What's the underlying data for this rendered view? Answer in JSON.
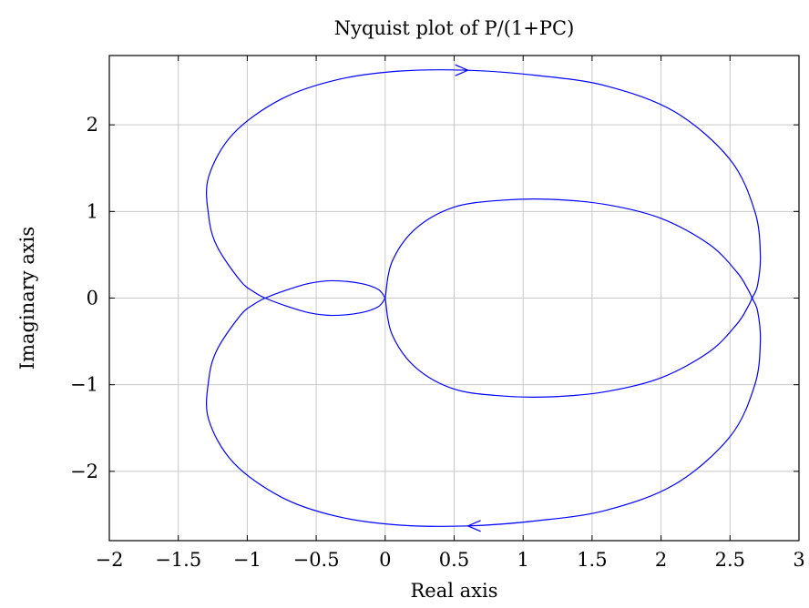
{
  "chart_data": {
    "type": "line",
    "title": "Nyquist plot of P/(1+PC)",
    "xlabel": "Real axis",
    "ylabel": "Imaginary axis",
    "xlim": [
      -2,
      3
    ],
    "ylim": [
      -2.8,
      2.8
    ],
    "grid": true,
    "xticks": [
      -2,
      -1.5,
      -1,
      -0.5,
      0,
      0.5,
      1,
      1.5,
      2,
      2.5,
      3
    ],
    "yticks": [
      -2,
      -1,
      0,
      1,
      2
    ],
    "xtick_labels": [
      "−2",
      "−1.5",
      "−1",
      "−0.5",
      "0",
      "0.5",
      "1",
      "1.5",
      "2",
      "2.5",
      "3"
    ],
    "ytick_labels": [
      "−2",
      "−1",
      "0",
      "1",
      "2"
    ],
    "series": [
      {
        "color": "#0000ff",
        "segments": [
          [
            [
              0,
              0
            ],
            [
              0.05,
              0.42
            ],
            [
              0.22,
              0.8
            ],
            [
              0.5,
              1.05
            ],
            [
              0.85,
              1.13
            ],
            [
              1.2,
              1.14
            ],
            [
              1.6,
              1.08
            ],
            [
              2.0,
              0.92
            ],
            [
              2.35,
              0.62
            ],
            [
              2.55,
              0.3
            ],
            [
              2.63,
              0.1
            ],
            [
              2.66,
              0
            ],
            [
              2.7,
              -0.15
            ],
            [
              2.72,
              -0.5
            ],
            [
              2.68,
              -1.0
            ],
            [
              2.5,
              -1.6
            ],
            [
              2.1,
              -2.15
            ],
            [
              1.6,
              -2.45
            ],
            [
              1.1,
              -2.57
            ],
            [
              0.6,
              -2.63
            ],
            [
              0.1,
              -2.62
            ],
            [
              -0.35,
              -2.52
            ],
            [
              -0.75,
              -2.3
            ],
            [
              -1.1,
              -1.9
            ],
            [
              -1.28,
              -1.4
            ],
            [
              -1.28,
              -0.95
            ],
            [
              -1.22,
              -0.6
            ],
            [
              -1.05,
              -0.2
            ],
            [
              -0.95,
              -0.07
            ],
            [
              -0.87,
              0
            ],
            [
              -0.72,
              0.09
            ],
            [
              -0.55,
              0.17
            ],
            [
              -0.38,
              0.2
            ],
            [
              -0.18,
              0.17
            ],
            [
              -0.05,
              0.1
            ],
            [
              0,
              0
            ]
          ],
          [
            [
              0,
              0
            ],
            [
              -0.05,
              -0.1
            ],
            [
              -0.18,
              -0.17
            ],
            [
              -0.38,
              -0.2
            ],
            [
              -0.55,
              -0.17
            ],
            [
              -0.72,
              -0.09
            ],
            [
              -0.87,
              0
            ],
            [
              -0.95,
              0.07
            ],
            [
              -1.05,
              0.2
            ],
            [
              -1.22,
              0.6
            ],
            [
              -1.28,
              0.95
            ],
            [
              -1.28,
              1.4
            ],
            [
              -1.1,
              1.9
            ],
            [
              -0.75,
              2.3
            ],
            [
              -0.35,
              2.52
            ],
            [
              0.1,
              2.62
            ],
            [
              0.6,
              2.63
            ],
            [
              1.1,
              2.57
            ],
            [
              1.6,
              2.45
            ],
            [
              2.1,
              2.15
            ],
            [
              2.5,
              1.6
            ],
            [
              2.68,
              1.0
            ],
            [
              2.72,
              0.5
            ],
            [
              2.7,
              0.15
            ],
            [
              2.66,
              0
            ],
            [
              2.63,
              -0.1
            ],
            [
              2.55,
              -0.3
            ],
            [
              2.35,
              -0.62
            ],
            [
              2.0,
              -0.92
            ],
            [
              1.6,
              -1.08
            ],
            [
              1.2,
              -1.14
            ],
            [
              0.85,
              -1.13
            ],
            [
              0.5,
              -1.05
            ],
            [
              0.22,
              -0.8
            ],
            [
              0.05,
              -0.42
            ],
            [
              0,
              0
            ]
          ]
        ],
        "arrows": [
          {
            "at": [
              0.6,
              2.63
            ],
            "direction": "right"
          },
          {
            "at": [
              0.6,
              -2.63
            ],
            "direction": "left"
          }
        ]
      }
    ]
  }
}
